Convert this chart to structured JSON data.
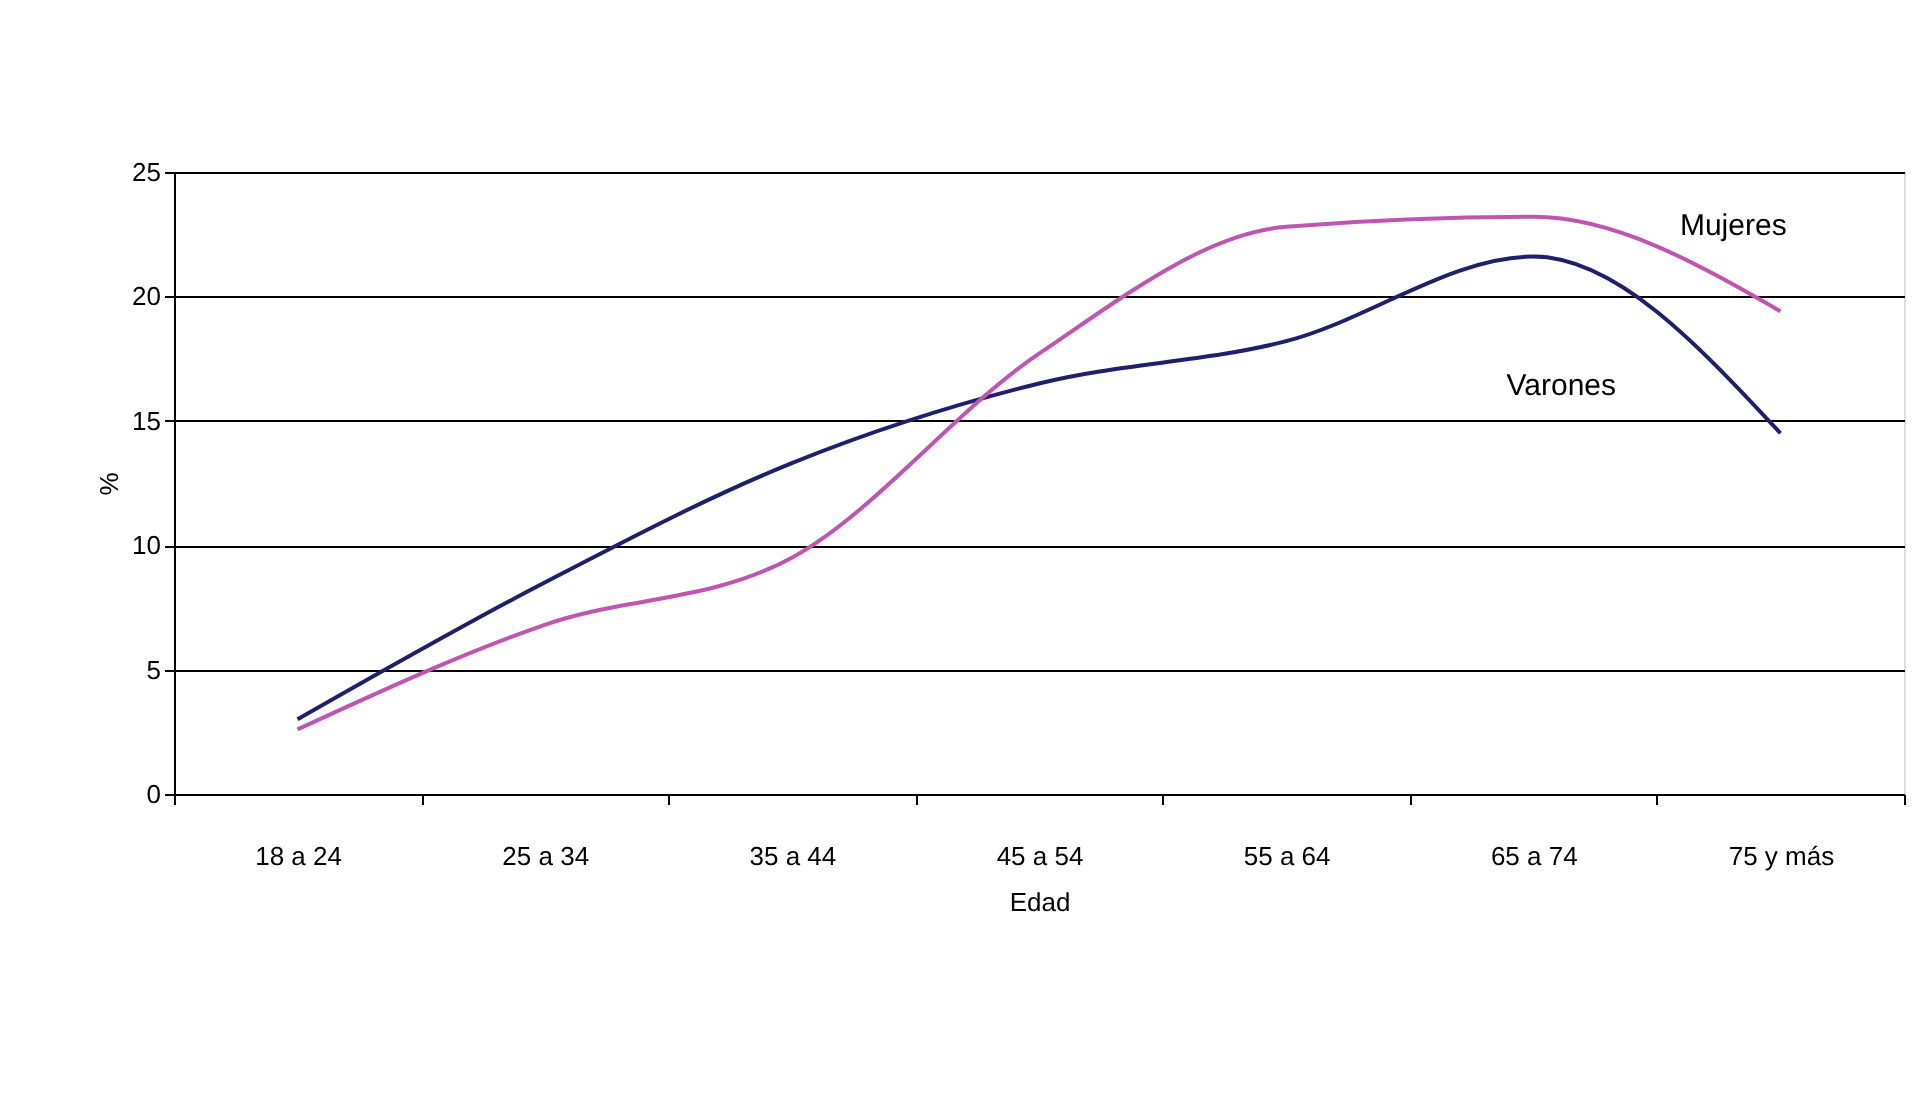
{
  "chart_data": {
    "type": "line",
    "xlabel": "Edad",
    "ylabel": "%",
    "categories": [
      "18 a 24",
      "25 a 34",
      "35 a 44",
      "45 a 54",
      "55 a 64",
      "65 a 74",
      "75 y más"
    ],
    "series": [
      {
        "name": "Varones",
        "color": "#1f1f6e",
        "values": [
          3.0,
          8.5,
          13.3,
          16.5,
          18.2,
          21.6,
          14.5
        ]
      },
      {
        "name": "Mujeres",
        "color": "#bf55b0",
        "values": [
          2.6,
          6.8,
          9.5,
          17.7,
          22.8,
          23.2,
          19.4
        ]
      }
    ],
    "ylim": [
      0,
      25
    ],
    "yticks": [
      0,
      5,
      10,
      15,
      20,
      25
    ],
    "grid": "y",
    "line_style": "solid",
    "marker": "none"
  }
}
